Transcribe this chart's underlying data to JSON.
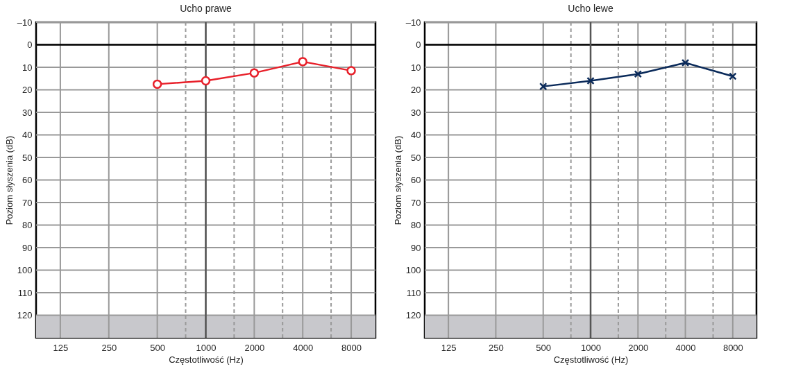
{
  "chart_data": [
    {
      "type": "line",
      "title": "Ucho prawe",
      "xlabel": "Częstotliwość (Hz)",
      "ylabel": "Poziom słyszenia (dB)",
      "x": [
        500,
        1000,
        2000,
        4000,
        8000
      ],
      "series": [
        {
          "color": "#e8202a",
          "values": [
            17.5,
            16,
            12.5,
            7.5,
            11.5
          ]
        }
      ],
      "marker": "circle",
      "log": "x",
      "grid": true,
      "xlim": [
        88.4,
        11314
      ],
      "ylim": [
        130,
        -10
      ],
      "xticks": [
        125,
        250,
        500,
        {
          "value": 750,
          "label": null
        },
        1000,
        {
          "value": 1500,
          "label": null
        },
        2000,
        {
          "value": 3000,
          "label": null
        },
        4000,
        {
          "value": 6000,
          "label": null
        },
        8000
      ],
      "yticks": [
        {
          "value": -10,
          "label": "–10"
        },
        0,
        10,
        20,
        30,
        40,
        50,
        60,
        70,
        80,
        90,
        100,
        110,
        120
      ],
      "ref_lines": [
        {
          "axis": "y",
          "value": 0,
          "color": "#000000"
        },
        {
          "axis": "x",
          "value": 1000,
          "color": "#555555"
        }
      ],
      "bands": [
        {
          "axis": "y",
          "from": 120,
          "to": 130,
          "color": "#c8c8cc"
        }
      ]
    },
    {
      "type": "line",
      "title": "Ucho lewe",
      "xlabel": "Częstotliwość (Hz)",
      "ylabel": "Poziom słyszenia (dB)",
      "x": [
        500,
        1000,
        2000,
        4000,
        8000
      ],
      "series": [
        {
          "color": "#0a2a5a",
          "values": [
            18.5,
            16,
            13,
            8,
            14
          ]
        }
      ],
      "marker": "cross",
      "log": "x",
      "grid": true,
      "xlim": [
        88.4,
        11314
      ],
      "ylim": [
        130,
        -10
      ],
      "xticks": [
        125,
        250,
        500,
        {
          "value": 750,
          "label": null
        },
        1000,
        {
          "value": 1500,
          "label": null
        },
        2000,
        {
          "value": 3000,
          "label": null
        },
        4000,
        {
          "value": 6000,
          "label": null
        },
        8000
      ],
      "yticks": [
        {
          "value": -10,
          "label": "–10"
        },
        0,
        10,
        20,
        30,
        40,
        50,
        60,
        70,
        80,
        90,
        100,
        110,
        120
      ],
      "ref_lines": [
        {
          "axis": "y",
          "value": 0,
          "color": "#000000"
        },
        {
          "axis": "x",
          "value": 1000,
          "color": "#555555"
        }
      ],
      "bands": [
        {
          "axis": "y",
          "from": 120,
          "to": 130,
          "color": "#c8c8cc"
        }
      ]
    }
  ]
}
